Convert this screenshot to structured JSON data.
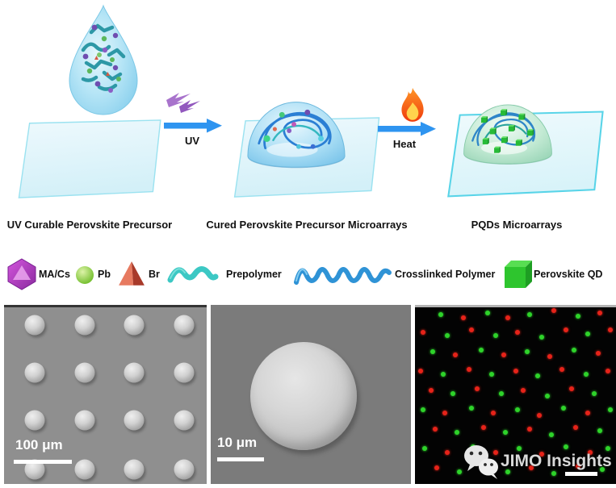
{
  "schematic": {
    "steps": [
      {
        "caption": "UV Curable Perovskite Precursor",
        "graphic": "precursor-droplet-on-substrate"
      },
      {
        "caption": "Cured Perovskite Precursor Microarrays",
        "graphic": "cured-dome-on-substrate"
      },
      {
        "caption": "PQDs Microarrays",
        "graphic": "pqd-dome-on-substrate"
      }
    ],
    "transitions": [
      {
        "label": "UV",
        "icon": "uv-lightning-icon"
      },
      {
        "label": "Heat",
        "icon": "flame-icon"
      }
    ],
    "arrow_color": "#2e94f0"
  },
  "legend": {
    "items": [
      {
        "label": "MA/Cs",
        "icon": "purple-polyhedron-icon",
        "color": "#bf3fcf"
      },
      {
        "label": "Pb",
        "icon": "green-sphere-icon",
        "color": "#7fca39"
      },
      {
        "label": "Br",
        "icon": "red-tetrahedron-icon",
        "color": "#dd6550"
      },
      {
        "label": "Prepolymer",
        "icon": "teal-wave-icon",
        "color": "#3cc8c4"
      },
      {
        "label": "Crosslinked Polymer",
        "icon": "blue-wave-icon",
        "color": "#2f93d6"
      },
      {
        "label": "Perovskite QD",
        "icon": "green-cube-icon",
        "color": "#2fc532"
      }
    ]
  },
  "micrographs": {
    "sem_array": {
      "scale_label": "100 μm",
      "sphere_cols_pct": [
        15,
        40,
        64,
        89
      ],
      "sphere_rows_pct": [
        10,
        37,
        64,
        92
      ]
    },
    "sem_single": {
      "scale_label": "10 μm"
    },
    "fluorescence": {
      "red": "#e62319",
      "green": "#2ed32a",
      "dots": [
        [
          13,
          4,
          "g"
        ],
        [
          24,
          6,
          "r"
        ],
        [
          36,
          3,
          "g"
        ],
        [
          46,
          6,
          "r"
        ],
        [
          57,
          4,
          "g"
        ],
        [
          69,
          2,
          "r"
        ],
        [
          81,
          5,
          "g"
        ],
        [
          92,
          3,
          "r"
        ],
        [
          4,
          14,
          "r"
        ],
        [
          16,
          16,
          "g"
        ],
        [
          28,
          13,
          "r"
        ],
        [
          40,
          16,
          "g"
        ],
        [
          51,
          14,
          "r"
        ],
        [
          63,
          17,
          "g"
        ],
        [
          75,
          13,
          "r"
        ],
        [
          86,
          15,
          "g"
        ],
        [
          97,
          13,
          "r"
        ],
        [
          9,
          25,
          "g"
        ],
        [
          20,
          27,
          "r"
        ],
        [
          33,
          24,
          "g"
        ],
        [
          44,
          27,
          "r"
        ],
        [
          56,
          25,
          "g"
        ],
        [
          67,
          28,
          "r"
        ],
        [
          79,
          24,
          "g"
        ],
        [
          91,
          26,
          "r"
        ],
        [
          3,
          36,
          "r"
        ],
        [
          14,
          38,
          "g"
        ],
        [
          27,
          35,
          "r"
        ],
        [
          38,
          38,
          "g"
        ],
        [
          50,
          36,
          "r"
        ],
        [
          61,
          39,
          "g"
        ],
        [
          73,
          35,
          "r"
        ],
        [
          85,
          38,
          "g"
        ],
        [
          96,
          36,
          "r"
        ],
        [
          8,
          47,
          "r"
        ],
        [
          19,
          49,
          "g"
        ],
        [
          31,
          46,
          "r"
        ],
        [
          43,
          49,
          "g"
        ],
        [
          54,
          47,
          "r"
        ],
        [
          66,
          50,
          "g"
        ],
        [
          78,
          46,
          "r"
        ],
        [
          89,
          49,
          "g"
        ],
        [
          4,
          58,
          "g"
        ],
        [
          15,
          60,
          "r"
        ],
        [
          28,
          57,
          "g"
        ],
        [
          39,
          60,
          "r"
        ],
        [
          51,
          58,
          "g"
        ],
        [
          62,
          61,
          "r"
        ],
        [
          74,
          57,
          "g"
        ],
        [
          86,
          60,
          "r"
        ],
        [
          97,
          58,
          "g"
        ],
        [
          10,
          69,
          "r"
        ],
        [
          21,
          71,
          "g"
        ],
        [
          34,
          68,
          "r"
        ],
        [
          45,
          71,
          "g"
        ],
        [
          57,
          69,
          "r"
        ],
        [
          68,
          72,
          "g"
        ],
        [
          80,
          68,
          "r"
        ],
        [
          92,
          70,
          "g"
        ],
        [
          5,
          80,
          "g"
        ],
        [
          16,
          82,
          "r"
        ],
        [
          29,
          79,
          "g"
        ],
        [
          40,
          82,
          "r"
        ],
        [
          52,
          80,
          "g"
        ],
        [
          63,
          83,
          "r"
        ],
        [
          75,
          79,
          "g"
        ],
        [
          87,
          82,
          "r"
        ],
        [
          96,
          80,
          "g"
        ],
        [
          11,
          91,
          "r"
        ],
        [
          22,
          93,
          "g"
        ],
        [
          35,
          90,
          "r"
        ],
        [
          46,
          93,
          "g"
        ],
        [
          58,
          91,
          "r"
        ],
        [
          69,
          94,
          "g"
        ],
        [
          81,
          90,
          "r"
        ],
        [
          93,
          92,
          "g"
        ]
      ]
    }
  },
  "watermark": {
    "text": "JIMO Insights",
    "icon": "wechat-icon"
  }
}
